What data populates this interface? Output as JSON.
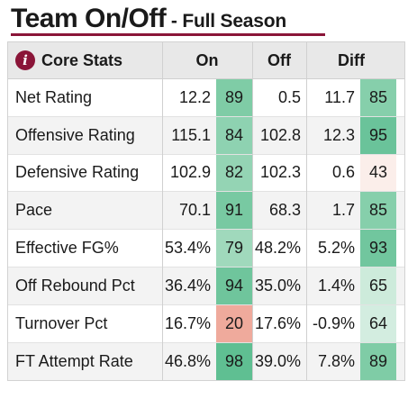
{
  "title": {
    "main": "Team On/Off",
    "sub": " - Full Season"
  },
  "colors": {
    "accent": "#8a1538"
  },
  "table": {
    "info_icon_glyph": "i",
    "headers": {
      "category": "Core Stats",
      "on": "On",
      "off": "Off",
      "diff": "Diff"
    },
    "rows": [
      {
        "label": "Net Rating",
        "on": "12.2",
        "on_pct": "89",
        "on_pct_color": "#7fcca6",
        "off": "0.5",
        "diff": "11.7",
        "diff_pct": "85",
        "diff_pct_color": "#86cfab"
      },
      {
        "label": "Offensive Rating",
        "on": "115.1",
        "on_pct": "84",
        "on_pct_color": "#8ed2b1",
        "off": "102.8",
        "diff": "12.3",
        "diff_pct": "95",
        "diff_pct_color": "#6ac39a"
      },
      {
        "label": "Defensive Rating",
        "on": "102.9",
        "on_pct": "82",
        "on_pct_color": "#94d4b4",
        "off": "102.3",
        "diff": "0.6",
        "diff_pct": "43",
        "diff_pct_color": "#fbeeea"
      },
      {
        "label": "Pace",
        "on": "70.1",
        "on_pct": "91",
        "on_pct_color": "#78c9a2",
        "off": "68.3",
        "diff": "1.7",
        "diff_pct": "85",
        "diff_pct_color": "#86cfab"
      },
      {
        "label": "Effective FG%",
        "on": "53.4%",
        "on_pct": "79",
        "on_pct_color": "#a0d9bc",
        "off": "48.2%",
        "diff": "5.2%",
        "diff_pct": "93",
        "diff_pct_color": "#71c69e"
      },
      {
        "label": "Off Rebound Pct",
        "on": "36.4%",
        "on_pct": "94",
        "on_pct_color": "#6fc59c",
        "off": "35.0%",
        "diff": "1.4%",
        "diff_pct": "65",
        "diff_pct_color": "#cdebdb"
      },
      {
        "label": "Turnover Pct",
        "on": "16.7%",
        "on_pct": "20",
        "on_pct_color": "#efaa9c",
        "off": "17.6%",
        "diff": "-0.9%",
        "diff_pct": "64",
        "diff_pct_color": "#d3ede0"
      },
      {
        "label": "FT Attempt Rate",
        "on": "46.8%",
        "on_pct": "98",
        "on_pct_color": "#5fbf92",
        "off": "39.0%",
        "diff": "7.8%",
        "diff_pct": "89",
        "diff_pct_color": "#7fcca6"
      }
    ]
  }
}
